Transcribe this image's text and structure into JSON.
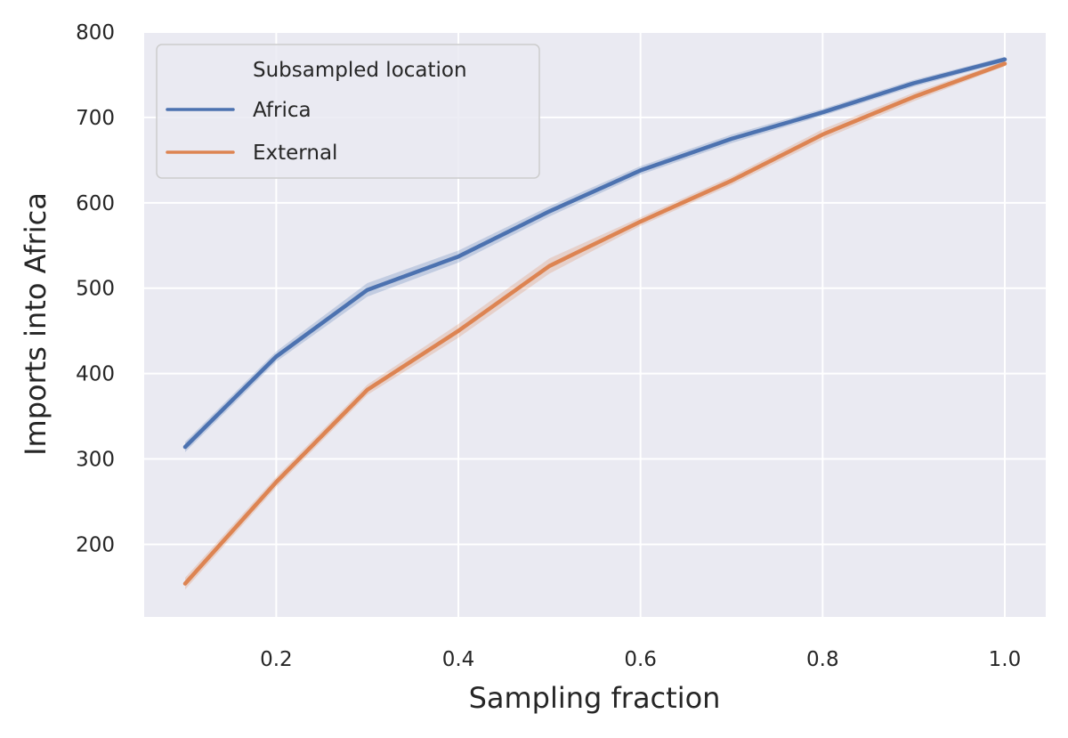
{
  "chart_data": {
    "type": "line",
    "xlabel": "Sampling fraction",
    "ylabel": "Imports into Africa",
    "xlim": [
      0.055,
      1.045
    ],
    "ylim": [
      115,
      800
    ],
    "xticks": [
      0.2,
      0.4,
      0.6,
      0.8,
      1.0
    ],
    "xtick_labels": [
      "0.2",
      "0.4",
      "0.6",
      "0.8",
      "1.0"
    ],
    "yticks": [
      200,
      300,
      400,
      500,
      600,
      700,
      800
    ],
    "ytick_labels": [
      "200",
      "300",
      "400",
      "500",
      "600",
      "700",
      "800"
    ],
    "grid": true,
    "legend": {
      "title": "Subsampled location",
      "placement": "top-left"
    },
    "x": [
      0.1,
      0.2,
      0.3,
      0.4,
      0.5,
      0.6,
      0.7,
      0.8,
      0.9,
      1.0
    ],
    "series": [
      {
        "name": "Africa",
        "color": "#4c72b0",
        "values": [
          314,
          420,
          498,
          537,
          590,
          638,
          675,
          706,
          740,
          768
        ],
        "band": [
          6,
          6,
          8,
          7,
          6,
          5,
          5,
          4,
          4,
          3
        ]
      },
      {
        "name": "External",
        "color": "#dd8452",
        "values": [
          154,
          273,
          381,
          450,
          526,
          578,
          626,
          680,
          724,
          763
        ],
        "band": [
          7,
          6,
          6,
          8,
          9,
          5,
          5,
          6,
          5,
          3
        ]
      }
    ]
  }
}
